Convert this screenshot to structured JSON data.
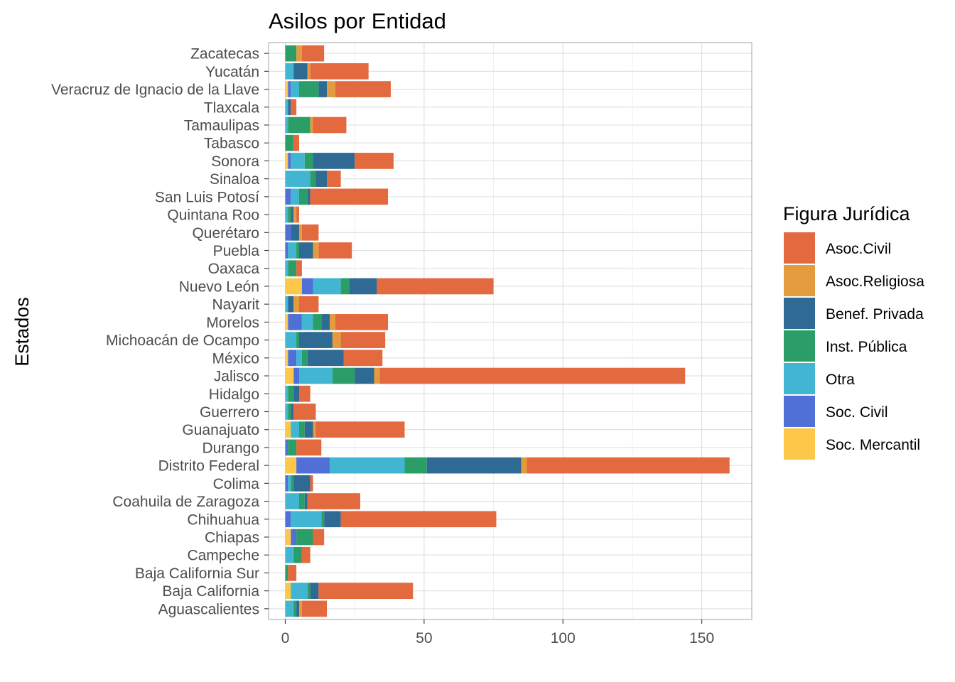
{
  "chart_data": {
    "type": "bar",
    "orientation": "horizontal",
    "stacked": true,
    "title": "Asilos por Entidad",
    "xlabel": "",
    "ylabel": "Estados",
    "xlim": [
      -6,
      168
    ],
    "xticks": [
      0,
      50,
      100,
      150
    ],
    "grid": true,
    "legend": {
      "title": "Figura Jurídica",
      "position": "right"
    },
    "categories": [
      "Aguascalientes",
      "Baja California",
      "Baja California Sur",
      "Campeche",
      "Chiapas",
      "Chihuahua",
      "Coahuila de Zaragoza",
      "Colima",
      "Distrito Federal",
      "Durango",
      "Guanajuato",
      "Guerrero",
      "Hidalgo",
      "Jalisco",
      "México",
      "Michoacán de Ocampo",
      "Morelos",
      "Nayarit",
      "Nuevo León",
      "Oaxaca",
      "Puebla",
      "Querétaro",
      "Quintana Roo",
      "San Luis Potosí",
      "Sinaloa",
      "Sonora",
      "Tabasco",
      "Tamaulipas",
      "Tlaxcala",
      "Veracruz de Ignacio de la Llave",
      "Yucatán",
      "Zacatecas"
    ],
    "series": [
      {
        "name": "Soc. Mercantil",
        "color": "#FDC84A",
        "values": [
          0,
          2,
          0,
          0,
          2,
          0,
          0,
          0,
          4,
          0,
          2,
          0,
          0,
          3,
          1,
          0,
          1,
          0,
          6,
          0,
          0,
          0,
          0,
          0,
          0,
          1,
          0,
          0,
          0,
          1,
          0,
          0
        ]
      },
      {
        "name": "Soc. Civil",
        "color": "#5170D7",
        "values": [
          0,
          0,
          0,
          0,
          2,
          2,
          0,
          1,
          12,
          1,
          0,
          0,
          0,
          2,
          3,
          0,
          5,
          0,
          4,
          0,
          1,
          2,
          0,
          2,
          0,
          1,
          0,
          0,
          0,
          1,
          0,
          0
        ]
      },
      {
        "name": "Otra",
        "color": "#41B5D1",
        "values": [
          3,
          6,
          0,
          3,
          0,
          11,
          5,
          1,
          27,
          0,
          3,
          1,
          1,
          12,
          2,
          4,
          4,
          1,
          10,
          1,
          3,
          0,
          1,
          3,
          9,
          5,
          0,
          1,
          1,
          3,
          3,
          0
        ]
      },
      {
        "name": "Inst. Pública",
        "color": "#2A9E66",
        "values": [
          1,
          1,
          1,
          3,
          6,
          1,
          2,
          1,
          8,
          3,
          2,
          1,
          2,
          8,
          2,
          1,
          3,
          0,
          3,
          3,
          1,
          0,
          1,
          3,
          2,
          3,
          3,
          8,
          0,
          7,
          0,
          4
        ]
      },
      {
        "name": "Benef. Privada",
        "color": "#2E6A93",
        "values": [
          1,
          3,
          0,
          0,
          0,
          6,
          1,
          6,
          34,
          0,
          3,
          1,
          2,
          7,
          13,
          12,
          3,
          2,
          10,
          0,
          5,
          3,
          1,
          1,
          4,
          15,
          0,
          0,
          1,
          3,
          5,
          0
        ]
      },
      {
        "name": "Asoc.Religiosa",
        "color": "#E39B3E",
        "values": [
          1,
          0,
          0,
          0,
          0,
          0,
          0,
          0,
          2,
          0,
          1,
          0,
          0,
          2,
          0,
          3,
          2,
          2,
          0,
          0,
          2,
          1,
          1,
          0,
          0,
          0,
          0,
          1,
          0,
          3,
          1,
          2
        ]
      },
      {
        "name": "Asoc.Civil",
        "color": "#E36A3E",
        "values": [
          9,
          34,
          3,
          3,
          4,
          56,
          19,
          1,
          73,
          9,
          32,
          8,
          4,
          110,
          14,
          16,
          19,
          7,
          42,
          2,
          12,
          6,
          1,
          28,
          5,
          14,
          2,
          12,
          2,
          20,
          21,
          8
        ]
      }
    ],
    "legend_order": [
      "Asoc.Civil",
      "Asoc.Religiosa",
      "Benef. Privada",
      "Inst. Pública",
      "Otra",
      "Soc. Civil",
      "Soc. Mercantil"
    ]
  }
}
